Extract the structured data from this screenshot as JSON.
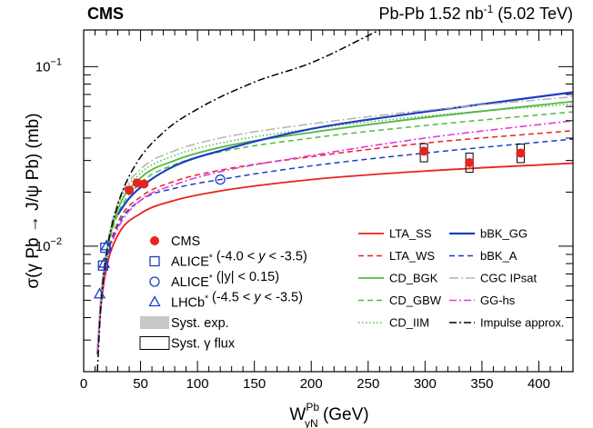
{
  "chart_data": {
    "type": "line",
    "header": {
      "experiment": "CMS",
      "lumi_prefix": "Pb-Pb 1.52 nb",
      "lumi_sup": "-1",
      "lumi_suffix": " (5.02 TeV)"
    },
    "xlabel": {
      "main": "W",
      "sup": "Pb",
      "sub": "γN",
      "unit": " (GeV)"
    },
    "ylabel": "σ(γ Pb → J/ψ Pb) (mb)",
    "x_range": [
      0,
      430
    ],
    "y_range": [
      0.002,
      0.16
    ],
    "y_scale": "log",
    "x_ticks": [
      0,
      50,
      100,
      150,
      200,
      250,
      300,
      350,
      400
    ],
    "x_tick_labels": [
      "0",
      "50",
      "100",
      "150",
      "200",
      "250",
      "300",
      "350",
      "400"
    ],
    "y_major_ticks": [
      {
        "value": 0.01,
        "base": "10",
        "exp": "−2"
      },
      {
        "value": 0.1,
        "base": "10",
        "exp": "−1"
      }
    ],
    "y_minor_ticks": [
      0.002,
      0.003,
      0.004,
      0.005,
      0.006,
      0.007,
      0.008,
      0.009,
      0.02,
      0.03,
      0.04,
      0.05,
      0.06,
      0.07,
      0.08,
      0.09
    ],
    "points": [
      {
        "series": "CMS",
        "x": 40,
        "y": 0.0205,
        "syst": [
          0.02,
          0.0212
        ],
        "sysw": 8
      },
      {
        "series": "CMS",
        "x": 47,
        "y": 0.0225,
        "syst": [
          0.022,
          0.0231
        ],
        "sysw": 8
      },
      {
        "series": "CMS",
        "x": 53,
        "y": 0.0222,
        "syst": [
          0.0217,
          0.0228
        ],
        "sysw": 8
      },
      {
        "series": "CMS",
        "x": 299,
        "y": 0.0338,
        "syst": [
          0.0295,
          0.0372
        ],
        "sysw": 8
      },
      {
        "series": "CMS",
        "x": 339,
        "y": 0.0292,
        "syst": [
          0.0258,
          0.033
        ],
        "sysw": 8
      },
      {
        "series": "CMS",
        "x": 384,
        "y": 0.033,
        "syst": [
          0.0292,
          0.037
        ],
        "sysw": 8
      },
      {
        "series": "ALICE1",
        "x": 19,
        "y": 0.0098
      },
      {
        "series": "ALICE1",
        "x": 17,
        "y": 0.0078
      },
      {
        "series": "ALICE2",
        "x": 120,
        "y": 0.0235
      },
      {
        "series": "LHCb",
        "x": 14,
        "y": 0.0054
      },
      {
        "series": "LHCb",
        "x": 18,
        "y": 0.008
      },
      {
        "series": "LHCb",
        "x": 20,
        "y": 0.01
      }
    ],
    "series": [
      {
        "name": "LTA_SS",
        "color": "#e8231f",
        "dash": "",
        "width": 1.8,
        "x": [
          12,
          15,
          20,
          30,
          50,
          80,
          120,
          200,
          300,
          430
        ],
        "y": [
          0.0025,
          0.0045,
          0.0075,
          0.0115,
          0.0152,
          0.018,
          0.0203,
          0.0235,
          0.0262,
          0.029
        ]
      },
      {
        "name": "LTA_WS",
        "color": "#e8231f",
        "dash": "6,4",
        "width": 1.5,
        "x": [
          12,
          15,
          20,
          30,
          50,
          80,
          120,
          200,
          300,
          430
        ],
        "y": [
          0.0025,
          0.0047,
          0.0082,
          0.0135,
          0.0188,
          0.023,
          0.0265,
          0.0315,
          0.0375,
          0.044
        ]
      },
      {
        "name": "CD_BGK",
        "color": "#54b847",
        "dash": "",
        "width": 1.8,
        "x": [
          12,
          15,
          20,
          30,
          50,
          80,
          120,
          200,
          300,
          430
        ],
        "y": [
          0.0025,
          0.005,
          0.009,
          0.016,
          0.024,
          0.03,
          0.0355,
          0.043,
          0.052,
          0.064
        ]
      },
      {
        "name": "CD_GBW",
        "color": "#54b847",
        "dash": "6,4",
        "width": 1.5,
        "x": [
          12,
          15,
          20,
          30,
          50,
          80,
          120,
          200,
          300,
          430
        ],
        "y": [
          0.0025,
          0.005,
          0.0088,
          0.015,
          0.0225,
          0.0285,
          0.0335,
          0.04,
          0.047,
          0.056
        ]
      },
      {
        "name": "CD_IIM",
        "color": "#54b847",
        "dash": "1.5,2.5",
        "width": 1.5,
        "x": [
          12,
          15,
          20,
          30,
          50,
          80,
          120,
          200,
          300,
          430
        ],
        "y": [
          0.0025,
          0.0052,
          0.0095,
          0.017,
          0.0255,
          0.032,
          0.0375,
          0.045,
          0.053,
          0.062
        ]
      },
      {
        "name": "bBK_GG",
        "color": "#1b3fc2",
        "dash": "",
        "width": 2.2,
        "x": [
          30,
          40,
          55,
          80,
          120,
          200,
          300,
          430
        ],
        "y": [
          0.015,
          0.0185,
          0.0225,
          0.028,
          0.034,
          0.045,
          0.056,
          0.072
        ]
      },
      {
        "name": "bBK_A",
        "color": "#1b3fc2",
        "dash": "6,4",
        "width": 1.5,
        "x": [
          12,
          15,
          20,
          30,
          50,
          80,
          120,
          200,
          300,
          430
        ],
        "y": [
          0.0025,
          0.0046,
          0.0082,
          0.013,
          0.018,
          0.021,
          0.0235,
          0.028,
          0.033,
          0.0395
        ]
      },
      {
        "name": "CGC IPsat",
        "color": "#b3b3b3",
        "dash": "10,3,2,3",
        "width": 1.5,
        "x": [
          12,
          15,
          20,
          30,
          50,
          80,
          120,
          200,
          300,
          430
        ],
        "y": [
          0.0025,
          0.0052,
          0.0096,
          0.0175,
          0.0268,
          0.034,
          0.04,
          0.048,
          0.057,
          0.068
        ]
      },
      {
        "name": "GG-hs",
        "color": "#e03be0",
        "dash": "8,3,2,3",
        "width": 1.6,
        "x": [
          12,
          15,
          20,
          30,
          50,
          80,
          120,
          200,
          300,
          430
        ],
        "y": [
          0.0025,
          0.0046,
          0.008,
          0.0125,
          0.018,
          0.022,
          0.026,
          0.032,
          0.04,
          0.05
        ]
      },
      {
        "name": "Impulse approx.",
        "color": "#000000",
        "dash": "8,3,2,3",
        "width": 1.5,
        "x": [
          12,
          15,
          20,
          30,
          45,
          70,
          100,
          150,
          200,
          260
        ],
        "y": [
          0.002,
          0.0045,
          0.009,
          0.017,
          0.028,
          0.043,
          0.058,
          0.082,
          0.105,
          0.16
        ]
      }
    ],
    "legend_left": [
      {
        "kind": "dot",
        "label_parts": [
          {
            "t": "CMS"
          }
        ]
      },
      {
        "kind": "square",
        "label_parts": [
          {
            "t": "ALICE"
          },
          {
            "t": "*",
            "sup": true
          },
          {
            "t": " (-4.0 < "
          },
          {
            "t": "y",
            "italic": true
          },
          {
            "t": " < -3.5)"
          }
        ]
      },
      {
        "kind": "circle",
        "label_parts": [
          {
            "t": "ALICE"
          },
          {
            "t": "*",
            "sup": true
          },
          {
            "t": " (|y| < 0.15)"
          }
        ]
      },
      {
        "kind": "triangle",
        "label_parts": [
          {
            "t": "LHCb"
          },
          {
            "t": "*",
            "sup": true
          },
          {
            "t": " (-4.5 < "
          },
          {
            "t": "y",
            "italic": true
          },
          {
            "t": " < -3.5)"
          }
        ]
      },
      {
        "kind": "grey-box",
        "label_parts": [
          {
            "t": "Syst. exp."
          }
        ]
      },
      {
        "kind": "open-box",
        "label_parts": [
          {
            "t": "Syst. γ flux"
          }
        ]
      }
    ],
    "legend_right": [
      [
        "LTA_SS",
        "bBK_GG"
      ],
      [
        "LTA_WS",
        "bBK_A"
      ],
      [
        "CD_BGK",
        "CGC IPsat"
      ],
      [
        "CD_GBW",
        "GG-hs"
      ],
      [
        "CD_IIM",
        "Impulse approx."
      ]
    ]
  }
}
